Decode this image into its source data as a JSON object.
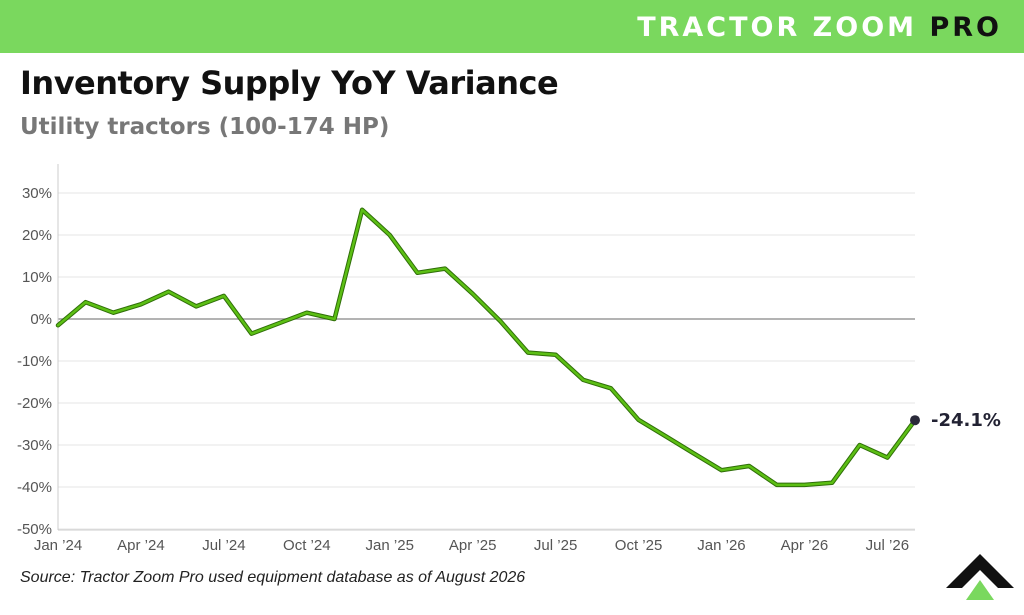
{
  "brand": {
    "name_light": "TRACTOR ZOOM",
    "name_dark": "PRO"
  },
  "title": "Inventory Supply YoY Variance",
  "subtitle": "Utility tractors (100-174 HP)",
  "source": "Source: Tractor Zoom Pro used equipment database as of August 2026",
  "colors": {
    "banner": "#7ad85e",
    "line": "#5cbf14",
    "line_outline": "#2f6e08",
    "end_marker": "#2a2a3a",
    "zero_line": "#9a9a9a",
    "grid": "#e6e6e6"
  },
  "chart_data": {
    "type": "line",
    "title": "",
    "xlabel": "",
    "ylabel": "",
    "x": [
      "2024-01",
      "2024-02",
      "2024-03",
      "2024-04",
      "2024-05",
      "2024-06",
      "2024-07",
      "2024-08",
      "2024-09",
      "2024-10",
      "2024-11",
      "2024-12",
      "2025-01",
      "2025-02",
      "2025-03",
      "2025-04",
      "2025-05",
      "2025-06",
      "2025-07",
      "2025-08",
      "2025-09",
      "2025-10",
      "2025-11",
      "2025-12",
      "2026-01",
      "2026-02",
      "2026-03",
      "2026-04",
      "2026-05",
      "2026-06",
      "2026-07",
      "2026-08"
    ],
    "series": [
      {
        "values": [
          -1.5,
          4,
          1.5,
          3.5,
          6.5,
          3,
          5.5,
          -3.5,
          -1,
          1.5,
          0,
          26,
          20,
          11,
          12,
          6,
          -0.5,
          -8,
          -8.5,
          -14.5,
          -16.5,
          -24,
          -28,
          -32,
          -36,
          -35,
          -39.5,
          -39.5,
          -39,
          -30,
          -33,
          -24.1
        ]
      }
    ],
    "x_tick_labels": [
      "Jan ’24",
      "Apr ’24",
      "Jul ’24",
      "Oct ’24",
      "Jan ’25",
      "Apr ’25",
      "Jul ’25",
      "Oct ’25",
      "Jan ’26",
      "Apr ’26",
      "Jul ’26"
    ],
    "y_ticks": [
      30,
      20,
      10,
      0,
      -10,
      -20,
      -30,
      -40,
      -50
    ],
    "y_tick_labels": [
      "30%",
      "20%",
      "10%",
      "0%",
      "-10%",
      "-20%",
      "-30%",
      "-40%",
      "-50%"
    ],
    "ylim": [
      -50,
      33
    ],
    "end_label": "-24.1%",
    "grid": true,
    "legend": "none"
  }
}
